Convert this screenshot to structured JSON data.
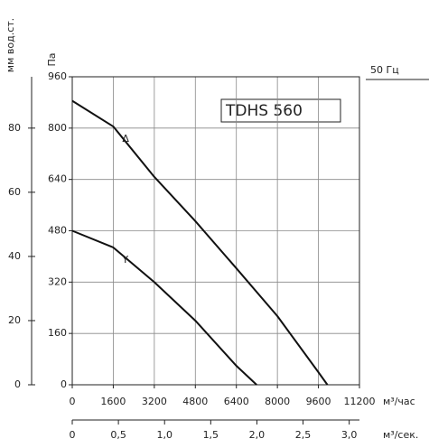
{
  "chart_data": {
    "type": "line",
    "title": "TDHS 560",
    "frequency_label": "50 Гц",
    "ylabel": "Па",
    "y2label": "мм вод.ст.",
    "xlabel": "м³/час",
    "x2label": "м³/сек.",
    "xlim": [
      0,
      11200
    ],
    "xticks": [
      0,
      1600,
      3200,
      4800,
      6400,
      8000,
      9600,
      11200
    ],
    "ylim": [
      0,
      960
    ],
    "yticks": [
      0,
      160,
      320,
      480,
      640,
      800,
      960
    ],
    "y2lim": [
      0,
      96
    ],
    "y2ticks": [
      0,
      20,
      40,
      60,
      80
    ],
    "x2lim": [
      0,
      3.111
    ],
    "x2ticks": [
      0,
      {
        "value": 0.5,
        "label": "0,5"
      },
      {
        "value": 1.0,
        "label": "1,0"
      },
      {
        "value": 1.5,
        "label": "1,5"
      },
      {
        "value": 2.0,
        "label": "2,0"
      },
      {
        "value": 2.5,
        "label": "2,5"
      },
      {
        "value": 3.0,
        "label": "3,0"
      }
    ],
    "grid": true,
    "series": [
      {
        "name": "Δ",
        "color": "#111111",
        "x": [
          0,
          1600,
          3200,
          4800,
          6400,
          8000,
          9600,
          9950
        ],
        "values": [
          885,
          805,
          648,
          510,
          363,
          214,
          39,
          0
        ]
      },
      {
        "name": "Y",
        "color": "#111111",
        "x": [
          0,
          1600,
          3200,
          4800,
          6400,
          7190
        ],
        "values": [
          480,
          428,
          320,
          200,
          59,
          0
        ]
      }
    ]
  }
}
